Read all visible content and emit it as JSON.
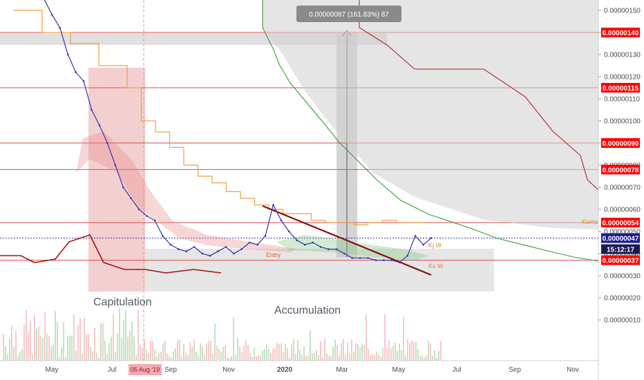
{
  "chart_data": {
    "type": "line",
    "title": "",
    "xlabel": "",
    "ylabel": "",
    "x_ticks": [
      "May",
      "Jul",
      "Sep",
      "Nov",
      "2020",
      "Mar",
      "May",
      "Jul",
      "Sep",
      "Nov"
    ],
    "y_ticks": [
      "0.00000150",
      "0.00000140",
      "0.00000130",
      "0.00000120",
      "0.00000110",
      "0.00000100",
      "0.00000090",
      "0.00000080",
      "0.00000070",
      "0.00000060",
      "0.00000050",
      "0.00000040",
      "0.00000030",
      "0.00000020",
      "0.00000010"
    ],
    "ylim": [
      5e-08,
      1.55e-06
    ],
    "grid": false,
    "horizontal_levels": [
      {
        "label": "0.00000140",
        "value": 1.4e-06
      },
      {
        "label": "0.00000115",
        "value": 1.15e-06
      },
      {
        "label": "0.00000090",
        "value": 9e-07
      },
      {
        "label": "0.00000078",
        "value": 7.8e-07
      },
      {
        "label": "0.00000054",
        "value": 5.4e-07
      },
      {
        "label": "0.00000037",
        "value": 3.7e-07
      }
    ],
    "current_price": {
      "label": "0.00000047",
      "value": 4.7e-07
    },
    "countdown": "15:12:17",
    "date_marker": "05 Aug '19",
    "measure_label": "0.00000087 (161.83%) 87",
    "annotations": [
      "Capitulation",
      "Accumulation",
      "Entry",
      "Kumo",
      "Kj W",
      "Ks W"
    ],
    "series": [
      {
        "name": "Price",
        "values": [
          1.55e-06,
          1.48e-06,
          1.42e-06,
          1.3e-06,
          1.22e-06,
          1.18e-06,
          1.05e-06,
          9.8e-07,
          9e-07,
          8e-07,
          7e-07,
          6.5e-07,
          6e-07,
          5.7e-07,
          5.5e-07,
          4.8e-07,
          4.4e-07,
          4.2e-07,
          4.1e-07,
          4.3e-07,
          4e-07,
          3.9e-07,
          4.1e-07,
          4.3e-07,
          4e-07,
          4.2e-07,
          4.5e-07,
          4.4e-07,
          4.8e-07,
          6.2e-07,
          5.5e-07,
          5e-07,
          4.6e-07,
          4.4e-07,
          4.5e-07,
          4.3e-07,
          4.2e-07,
          4.2e-07,
          4e-07,
          3.8e-07,
          3.8e-07,
          3.8e-07,
          3.7e-07,
          3.7e-07,
          3.7e-07,
          3.6e-07,
          3.9e-07,
          4.8e-07,
          4.4e-07,
          4.7e-07
        ]
      },
      {
        "name": "Kijun",
        "values": [
          1.5e-06,
          1.5e-06,
          1.4e-06,
          1.4e-06,
          1.35e-06,
          1.35e-06,
          1.25e-06,
          1.25e-06,
          1.15e-06,
          1e-06,
          9.5e-07,
          8.8e-07,
          8e-07,
          7.5e-07,
          7.2e-07,
          6.8e-07,
          6.5e-07,
          6.2e-07,
          6e-07,
          5.8e-07,
          5.8e-07,
          5.5e-07,
          5.4e-07,
          5.4e-07,
          5.3e-07,
          5.4e-07,
          5.5e-07,
          5.4e-07,
          5.4e-07,
          5.4e-07
        ]
      }
    ]
  },
  "icons": {
    "measure": "arrow-up-icon"
  },
  "colors": {
    "price": "#3333aa",
    "resistance": "#e24a4a",
    "price_tag": "#ff0000",
    "current_tag": "#1b1b8f",
    "trendline": "#8b0d0d",
    "kumo_red": "#e88a8a",
    "kumo_green": "#7cc47c",
    "kijun": "#f0a040"
  }
}
